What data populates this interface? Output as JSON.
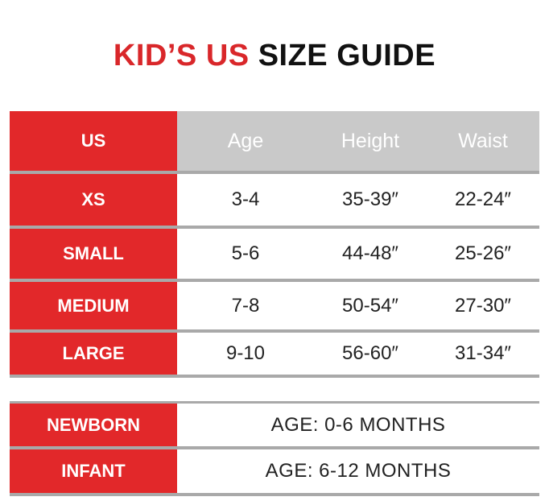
{
  "title": {
    "red": "KID’S US",
    "black": "SIZE GUIDE"
  },
  "table": {
    "header": [
      "US",
      "Age",
      "Height",
      "Waist"
    ],
    "rows": [
      [
        "XS",
        "3-4",
        "35-39″",
        "22-24″"
      ],
      [
        "SMALL",
        "5-6",
        "44-48″",
        "25-26″"
      ],
      [
        "MEDIUM",
        "7-8",
        "50-54″",
        "27-30″"
      ],
      [
        "LARGE",
        "9-10",
        "56-60″",
        "31-34″"
      ]
    ]
  },
  "infant_table": {
    "rows": [
      [
        "NEWBORN",
        "AGE: 0-6 MONTHS"
      ],
      [
        "INFANT",
        "AGE: 6-12 MONTHS"
      ]
    ]
  }
}
